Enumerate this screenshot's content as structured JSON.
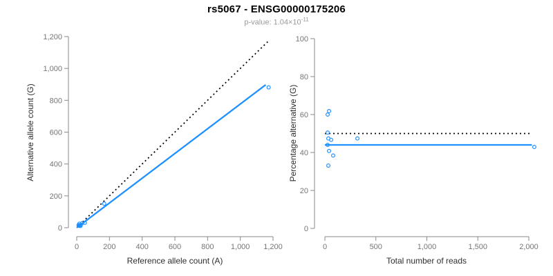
{
  "header": {
    "title": "rs5067 - ENSG00000175206",
    "pvalue_label": "p-value: ",
    "pvalue_base": "1.04×10",
    "pvalue_exponent": "-11"
  },
  "colors": {
    "accent_blue": "#1E90FF",
    "reference_line": "#000000",
    "axis": "#8a8a8a",
    "tick_label": "#757575",
    "axis_title": "#2e2e2e",
    "title": "#000000",
    "subtitle": "#9a9a9a",
    "background": "#ffffff"
  },
  "chart_data": [
    {
      "type": "scatter",
      "name": "allele-counts-scatter",
      "title": "",
      "xlabel": "Reference allele count (A)",
      "ylabel": "Alternative allele count (G)",
      "xlim": [
        0,
        1200
      ],
      "ylim": [
        0,
        1200
      ],
      "xticks": [
        0,
        200,
        400,
        600,
        800,
        1000,
        1200
      ],
      "xtick_labels": [
        "0",
        "200",
        "400",
        "600",
        "800",
        "1,000",
        "1,200"
      ],
      "yticks": [
        0,
        200,
        400,
        600,
        800,
        1000,
        1200
      ],
      "ytick_labels": [
        "0",
        "200",
        "400",
        "600",
        "800",
        "1,000",
        "1,200"
      ],
      "grid": false,
      "legend": "none",
      "points": [
        [
          11,
          16
        ],
        [
          16,
          25
        ],
        [
          13,
          14
        ],
        [
          18,
          16
        ],
        [
          33,
          28
        ],
        [
          15,
          12
        ],
        [
          24,
          17
        ],
        [
          50,
          31
        ],
        [
          23,
          11
        ],
        [
          168,
          151
        ],
        [
          1173,
          881
        ]
      ],
      "lines": [
        {
          "name": "identity-line",
          "style": "dotted",
          "color": "#000000",
          "x": [
            0,
            1170
          ],
          "y": [
            0,
            1170
          ]
        },
        {
          "name": "fit-line",
          "style": "solid",
          "color": "#1E90FF",
          "x": [
            0,
            1155
          ],
          "y": [
            0,
            897
          ]
        }
      ]
    },
    {
      "type": "scatter",
      "name": "percentage-vs-reads-scatter",
      "title": "",
      "xlabel": "Total number of reads",
      "ylabel": "Percentage alternative (G)",
      "xlim": [
        0,
        2000
      ],
      "ylim": [
        0,
        100
      ],
      "xticks": [
        0,
        500,
        1000,
        1500,
        2000
      ],
      "xtick_labels": [
        "0",
        "500",
        "1,000",
        "1,500",
        "2,000"
      ],
      "yticks": [
        0,
        20,
        40,
        60,
        80,
        100
      ],
      "ytick_labels": [
        "0",
        "20",
        "40",
        "60",
        "80",
        "100"
      ],
      "grid": false,
      "legend": "none",
      "points": [
        [
          27,
          60.0
        ],
        [
          41,
          61.8
        ],
        [
          27,
          50.5
        ],
        [
          34,
          47.4
        ],
        [
          61,
          46.7
        ],
        [
          27,
          44.0
        ],
        [
          41,
          40.8
        ],
        [
          81,
          38.4
        ],
        [
          34,
          33.1
        ],
        [
          319,
          47.4
        ],
        [
          2054,
          42.9
        ]
      ],
      "lines": [
        {
          "name": "reference-50pct-line",
          "style": "dotted",
          "color": "#000000",
          "x": [
            0,
            2010
          ],
          "y": [
            50,
            50
          ]
        },
        {
          "name": "fit-line",
          "style": "solid",
          "color": "#1E90FF",
          "x": [
            0,
            2030
          ],
          "y": [
            44,
            44
          ]
        }
      ]
    }
  ]
}
